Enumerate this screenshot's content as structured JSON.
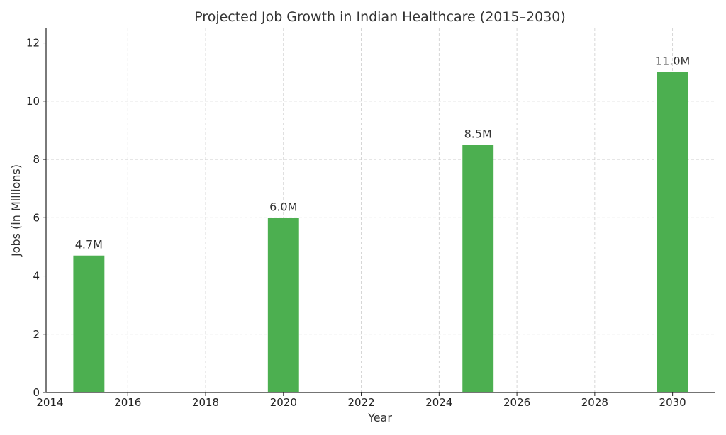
{
  "chart_data": {
    "type": "bar",
    "title": "Projected Job Growth in Indian Healthcare (2015–2030)",
    "xlabel": "Year",
    "ylabel": "Jobs (in Millions)",
    "x": [
      2015,
      2020,
      2025,
      2030
    ],
    "values": [
      4.7,
      6.0,
      8.5,
      11.0
    ],
    "data_labels": [
      "4.7M",
      "6.0M",
      "8.5M",
      "11.0M"
    ],
    "xlim": [
      2013.9,
      2031.1
    ],
    "ylim": [
      0,
      12.5
    ],
    "xticks": [
      2014,
      2016,
      2018,
      2020,
      2022,
      2024,
      2026,
      2028,
      2030
    ],
    "yticks": [
      0,
      2,
      4,
      6,
      8,
      10,
      12
    ],
    "bar_width": 0.8,
    "bar_color": "#4caf50",
    "grid": true
  }
}
